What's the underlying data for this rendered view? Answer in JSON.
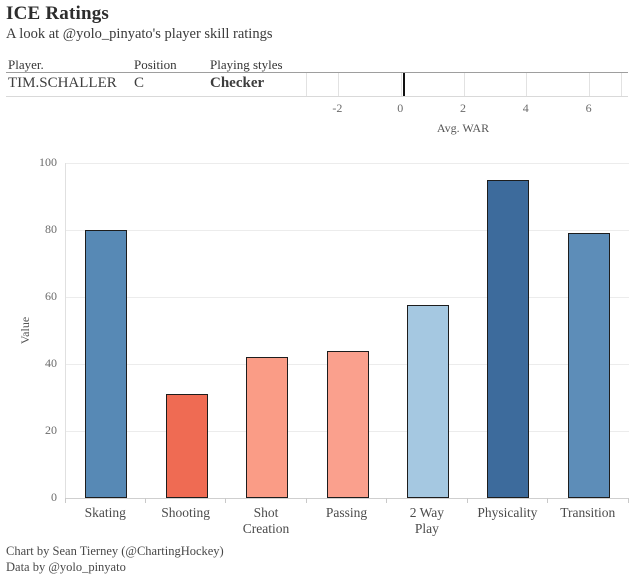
{
  "header": {
    "title": "ICE Ratings",
    "subtitle": "A look at @yolo_pinyato's player skill ratings"
  },
  "table": {
    "columns": [
      "Player.",
      "Position",
      "Playing styles"
    ],
    "row": {
      "player": "TIM.SCHALLER",
      "position": "C",
      "playing_style": "Checker"
    }
  },
  "war_axis": {
    "label": "Avg. WAR",
    "ticks": [
      -2,
      0,
      2,
      4,
      6
    ],
    "range": [
      -3,
      7
    ],
    "marker_value": 0.1,
    "marker_color": "#111111",
    "gridline_color": "#e2e2e2"
  },
  "chart_data": {
    "type": "bar",
    "title": "ICE Ratings",
    "categories": [
      "Skating",
      "Shooting",
      "Shot Creation",
      "Passing",
      "2 Way Play",
      "Physicality",
      "Transition"
    ],
    "category_lines": [
      [
        "Skating"
      ],
      [
        "Shooting"
      ],
      [
        "Shot",
        "Creation"
      ],
      [
        "Passing"
      ],
      [
        "2 Way",
        "Play"
      ],
      [
        "Physicality"
      ],
      [
        "Transition"
      ]
    ],
    "values": [
      80,
      31,
      42,
      44,
      57.5,
      95,
      79
    ],
    "colors": [
      "#5789b5",
      "#ef6b53",
      "#fa9c86",
      "#faa08d",
      "#a5c8e1",
      "#3d6b9c",
      "#5d8db8"
    ],
    "bar_outline": "#1d1d1d",
    "xlabel": "",
    "ylabel": "Value",
    "ylim": [
      0,
      100
    ],
    "yticks": [
      0,
      20,
      40,
      60,
      80,
      100
    ],
    "grid": true,
    "gridline_color": "#ececec",
    "baseline_color": "#cfcfcf",
    "legend": false
  },
  "footer": {
    "line1": "Chart by Sean Tierney (@ChartingHockey)",
    "line2": "Data by @yolo_pinyato"
  }
}
